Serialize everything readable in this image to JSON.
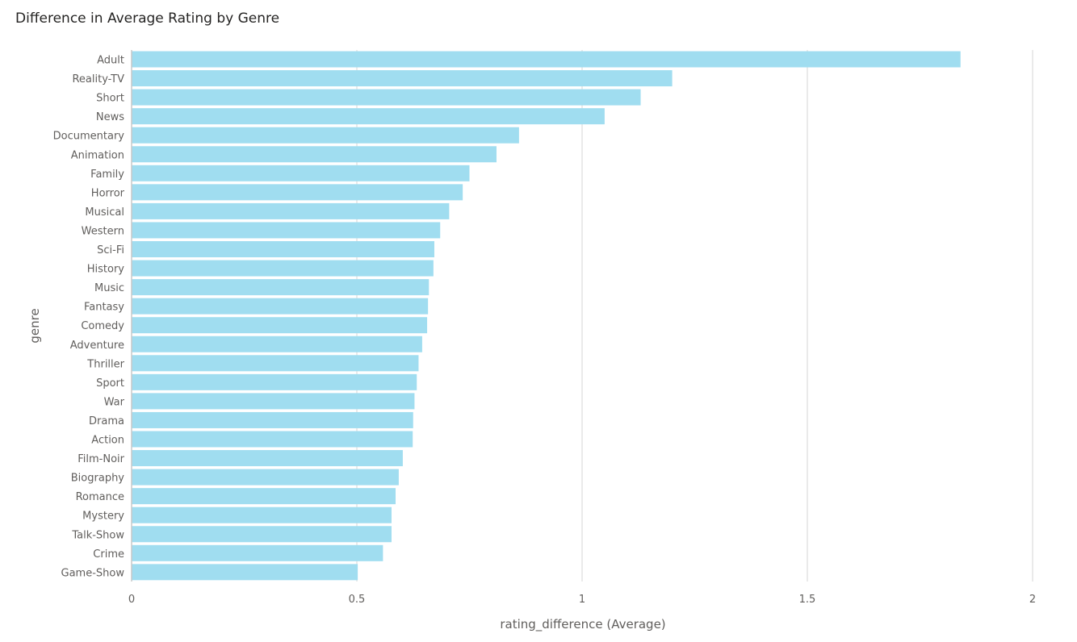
{
  "chart_data": {
    "type": "bar",
    "orientation": "horizontal",
    "title": "Difference in Average Rating by Genre",
    "xlabel": "rating_difference (Average)",
    "ylabel": "genre",
    "xlim": [
      0,
      2
    ],
    "xticks": [
      "0",
      "0.5",
      "1",
      "1.5",
      "2"
    ],
    "grid": true,
    "bar_color": "#a0ddf0",
    "categories": [
      "Adult",
      "Reality-TV",
      "Short",
      "News",
      "Documentary",
      "Animation",
      "Family",
      "Horror",
      "Musical",
      "Western",
      "Sci-Fi",
      "History",
      "Music",
      "Fantasy",
      "Comedy",
      "Adventure",
      "Thriller",
      "Sport",
      "War",
      "Drama",
      "Action",
      "Film-Noir",
      "Biography",
      "Romance",
      "Mystery",
      "Talk-Show",
      "Crime",
      "Game-Show"
    ],
    "values": [
      1.84,
      1.2,
      1.13,
      1.05,
      0.86,
      0.81,
      0.75,
      0.735,
      0.705,
      0.685,
      0.672,
      0.67,
      0.66,
      0.658,
      0.656,
      0.645,
      0.637,
      0.633,
      0.628,
      0.625,
      0.624,
      0.602,
      0.593,
      0.586,
      0.577,
      0.577,
      0.558,
      0.502
    ]
  }
}
